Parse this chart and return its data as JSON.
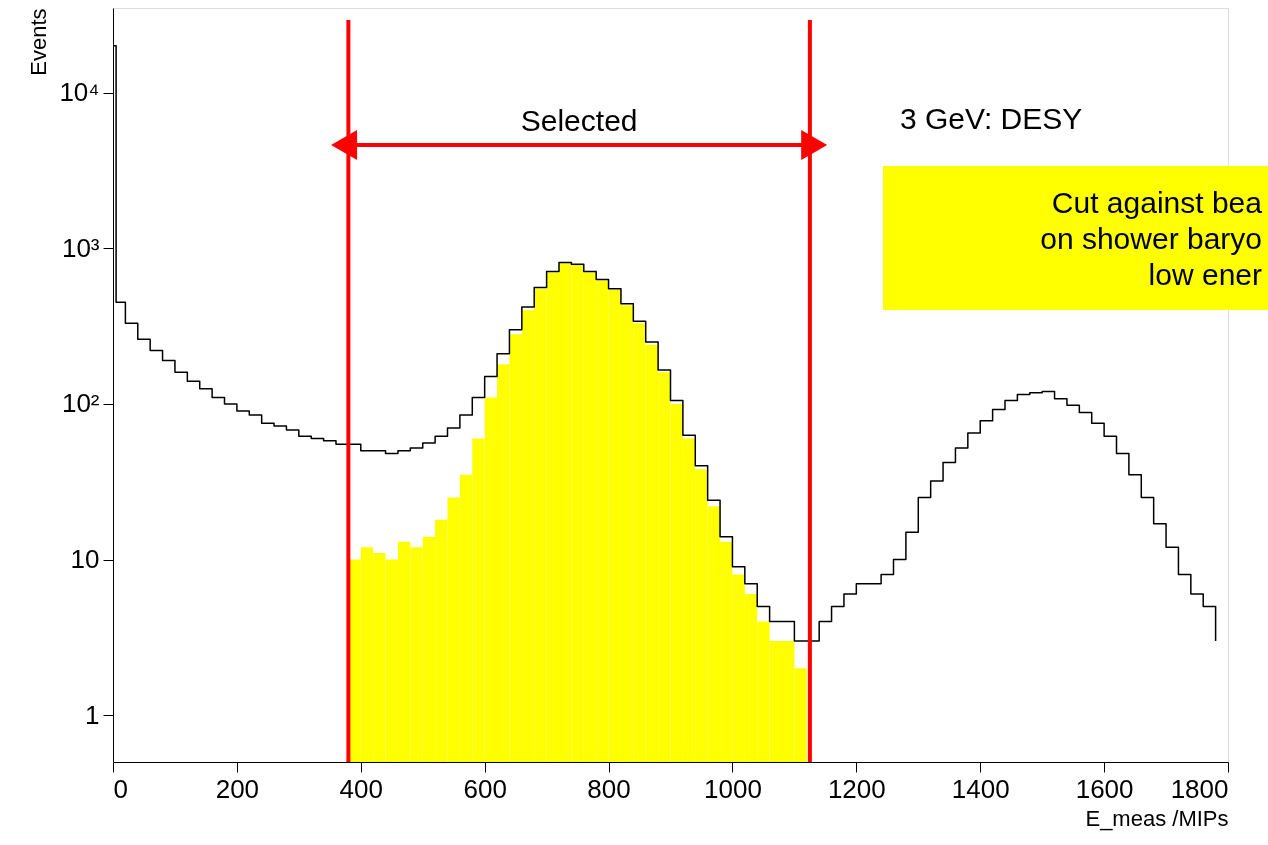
{
  "chart_data": {
    "type": "histogram",
    "xlabel": "E_meas /MIPs",
    "ylabel": "Events",
    "log": "y",
    "grid": false,
    "bins": [
      380,
      400,
      420,
      440,
      460,
      480,
      500,
      520,
      540,
      560,
      580,
      600,
      620,
      640,
      660,
      680,
      700,
      720,
      740,
      760,
      780,
      800,
      820,
      840,
      860,
      880,
      900,
      920,
      940,
      960,
      980,
      1000,
      1020,
      1040,
      1060,
      1080,
      1100,
      1120
    ],
    "series": [
      {
        "color": "#ffff00",
        "values": [
          10,
          12,
          11,
          10,
          13,
          12,
          14,
          18,
          25,
          35,
          60,
          110,
          180,
          280,
          400,
          550,
          700,
          800,
          780,
          700,
          620,
          540,
          430,
          330,
          240,
          160,
          100,
          60,
          38,
          22,
          13,
          8,
          6,
          4,
          3,
          3,
          2
        ]
      },
      {
        "type": "step",
        "color": "#000000",
        "x": [
          0,
          5,
          20,
          40,
          60,
          80,
          100,
          120,
          140,
          160,
          180,
          200,
          220,
          240,
          260,
          280,
          300,
          320,
          340,
          360,
          380,
          400,
          420,
          440,
          460,
          480,
          500,
          520,
          540,
          560,
          580,
          600,
          620,
          640,
          660,
          680,
          700,
          720,
          740,
          760,
          780,
          800,
          820,
          840,
          860,
          880,
          900,
          920,
          940,
          960,
          980,
          1000,
          1020,
          1040,
          1060,
          1080,
          1100,
          1120,
          1140,
          1160,
          1180,
          1200,
          1220,
          1240,
          1260,
          1280,
          1300,
          1320,
          1340,
          1360,
          1380,
          1400,
          1420,
          1440,
          1460,
          1480,
          1500,
          1520,
          1540,
          1560,
          1580,
          1600,
          1620,
          1640,
          1660,
          1680,
          1700,
          1720,
          1740,
          1760,
          1780
        ],
        "values": [
          20000,
          450,
          330,
          260,
          220,
          190,
          160,
          140,
          125,
          110,
          100,
          90,
          85,
          75,
          72,
          68,
          62,
          60,
          58,
          55,
          55,
          50,
          50,
          48,
          50,
          52,
          56,
          62,
          70,
          85,
          110,
          150,
          210,
          300,
          420,
          560,
          710,
          810,
          790,
          710,
          630,
          550,
          440,
          340,
          250,
          165,
          105,
          63,
          40,
          24,
          14,
          9,
          7,
          5,
          4,
          4,
          3,
          3,
          4,
          5,
          6,
          7,
          7,
          8,
          10,
          15,
          25,
          32,
          42,
          52,
          65,
          78,
          92,
          105,
          115,
          118,
          120,
          108,
          98,
          88,
          75,
          62,
          48,
          35,
          25,
          17,
          12,
          8,
          6,
          5,
          3
        ]
      }
    ],
    "xlim": [
      0,
      1800
    ],
    "xticks": [
      0,
      200,
      400,
      600,
      800,
      {
        "value": 1000,
        "label": "1000"
      },
      {
        "value": 1200,
        "label": "1200"
      },
      {
        "value": 1400,
        "label": "1400"
      },
      {
        "value": 1600,
        "label": "1600"
      },
      {
        "value": 1800,
        "label": "1800"
      }
    ],
    "ylim": [
      0.5,
      35000
    ],
    "yticks": [
      1,
      10,
      {
        "value": 100,
        "label": "10²"
      },
      {
        "value": 1000,
        "label": "10³"
      },
      {
        "value": 10000,
        "label": "10⁴"
      }
    ],
    "ref_lines": [
      {
        "axis": "x",
        "value": 380,
        "color": "#ff0000"
      },
      {
        "axis": "x",
        "value": 1125,
        "color": "#ff0000"
      }
    ],
    "annotations": [
      "Selected",
      "3 GeV: DESY",
      "Cut against bea",
      "on shower baryo",
      "low ener"
    ]
  }
}
